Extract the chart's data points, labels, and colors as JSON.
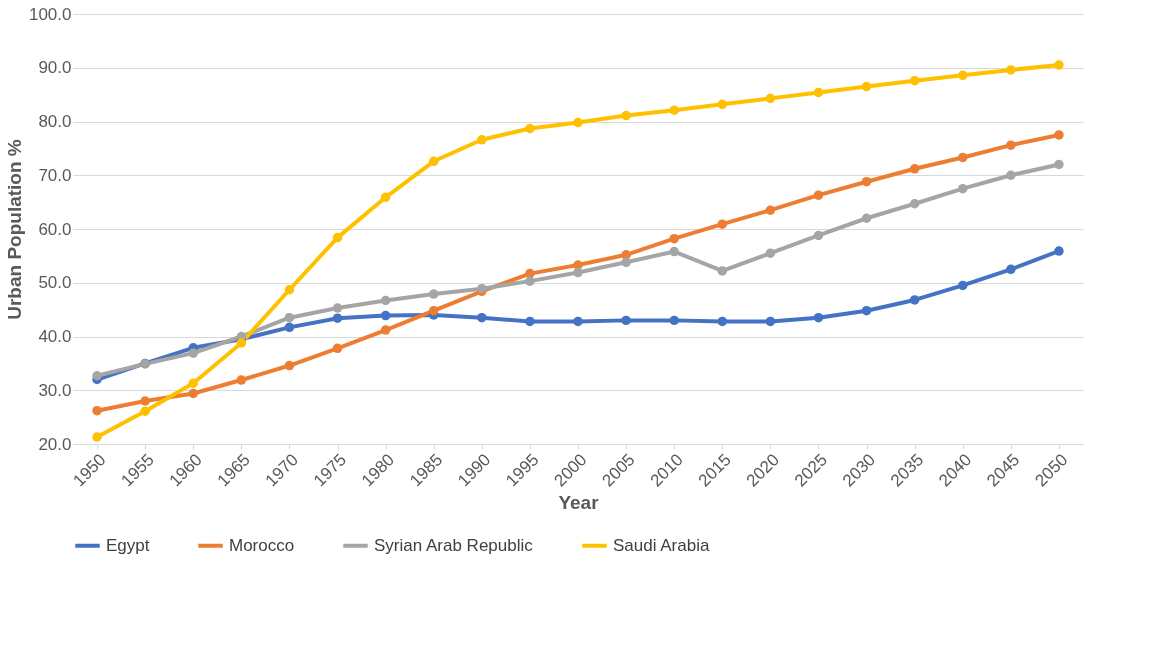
{
  "chart_data": {
    "type": "line",
    "xlabel": "Year",
    "ylabel": "Urban Population %",
    "categories": [
      "1950",
      "1955",
      "1960",
      "1965",
      "1970",
      "1975",
      "1980",
      "1985",
      "1990",
      "1995",
      "2000",
      "2005",
      "2010",
      "2015",
      "2020",
      "2025",
      "2030",
      "2035",
      "2040",
      "2045",
      "2050"
    ],
    "series": [
      {
        "name": "Egypt",
        "color": "#4472c4",
        "values": [
          32.0,
          35.0,
          37.9,
          39.5,
          41.7,
          43.4,
          43.9,
          44.0,
          43.5,
          42.8,
          42.8,
          43.0,
          43.0,
          42.8,
          42.8,
          43.5,
          44.8,
          46.8,
          49.5,
          52.5,
          55.9
        ]
      },
      {
        "name": "Morocco",
        "color": "#ed7d31",
        "values": [
          26.2,
          28.0,
          29.4,
          31.9,
          34.6,
          37.8,
          41.2,
          44.8,
          48.4,
          51.7,
          53.3,
          55.2,
          58.2,
          60.9,
          63.5,
          66.3,
          68.8,
          71.2,
          73.3,
          75.6,
          77.5
        ]
      },
      {
        "name": "Syrian Arab Republic",
        "color": "#a5a5a5",
        "values": [
          32.7,
          34.9,
          36.9,
          40.0,
          43.5,
          45.3,
          46.7,
          47.9,
          48.9,
          50.3,
          51.9,
          53.8,
          55.8,
          52.2,
          55.5,
          58.8,
          62.0,
          64.7,
          67.5,
          70.0,
          72.0
        ]
      },
      {
        "name": "Saudi Arabia",
        "color": "#ffc000",
        "values": [
          21.3,
          26.1,
          31.3,
          38.8,
          48.7,
          58.4,
          65.9,
          72.6,
          76.6,
          78.7,
          79.8,
          81.1,
          82.1,
          83.2,
          84.3,
          85.4,
          86.5,
          87.6,
          88.6,
          89.6,
          90.5
        ]
      }
    ],
    "ylim": [
      20,
      100
    ],
    "yticks": [
      {
        "value": 20,
        "label": "20.0"
      },
      {
        "value": 30,
        "label": "30.0"
      },
      {
        "value": 40,
        "label": "40.0"
      },
      {
        "value": 50,
        "label": "50.0"
      },
      {
        "value": 60,
        "label": "60.0"
      },
      {
        "value": 70,
        "label": "70.0"
      },
      {
        "value": 80,
        "label": "80.0"
      },
      {
        "value": 90,
        "label": "90.0"
      },
      {
        "value": 100,
        "label": "100.0"
      }
    ],
    "grid": "y",
    "legend": "bottom",
    "marker": "circle",
    "line_style": "solid"
  }
}
